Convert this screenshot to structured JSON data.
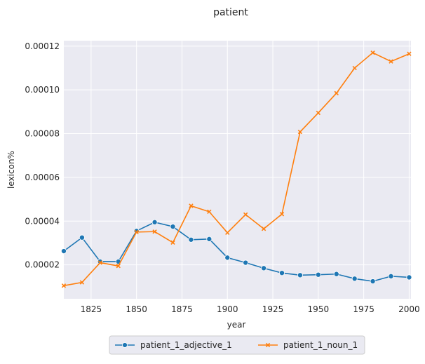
{
  "chart_data": {
    "type": "line",
    "title": "patient",
    "xlabel": "year",
    "ylabel": "lexicon%",
    "xlim": [
      1810,
      2001
    ],
    "ylim": [
      4.5e-06,
      0.0001225
    ],
    "x_ticks": [
      1825,
      1850,
      1875,
      1900,
      1925,
      1950,
      1975,
      2000
    ],
    "y_ticks": [
      2e-05,
      4e-05,
      6e-05,
      8e-05,
      0.0001,
      0.00012
    ],
    "y_tick_labels": [
      "0.00002",
      "0.00004",
      "0.00006",
      "0.00008",
      "0.00010",
      "0.00012"
    ],
    "grid": true,
    "legend_position": "bottom-center",
    "x": [
      1810,
      1820,
      1830,
      1840,
      1850,
      1860,
      1870,
      1880,
      1890,
      1900,
      1910,
      1920,
      1930,
      1940,
      1950,
      1960,
      1970,
      1980,
      1990,
      2000
    ],
    "series": [
      {
        "name": "patient_1_adjective_1",
        "color": "#1f77b4",
        "marker": "circle",
        "values": [
          2.63e-05,
          3.25e-05,
          2.15e-05,
          2.15e-05,
          3.55e-05,
          3.95e-05,
          3.75e-05,
          3.15e-05,
          3.18e-05,
          2.33e-05,
          2.1e-05,
          1.85e-05,
          1.63e-05,
          1.53e-05,
          1.55e-05,
          1.58e-05,
          1.37e-05,
          1.25e-05,
          1.48e-05,
          1.43e-05
        ]
      },
      {
        "name": "patient_1_noun_1",
        "color": "#ff7f0e",
        "marker": "x",
        "values": [
          1.05e-05,
          1.2e-05,
          2.1e-05,
          1.95e-05,
          3.5e-05,
          3.52e-05,
          3.02e-05,
          4.7e-05,
          4.43e-05,
          3.47e-05,
          4.3e-05,
          3.65e-05,
          4.32e-05,
          8.08e-05,
          8.95e-05,
          9.85e-05,
          0.00011,
          0.000117,
          0.000113,
          0.0001165
        ]
      }
    ]
  }
}
